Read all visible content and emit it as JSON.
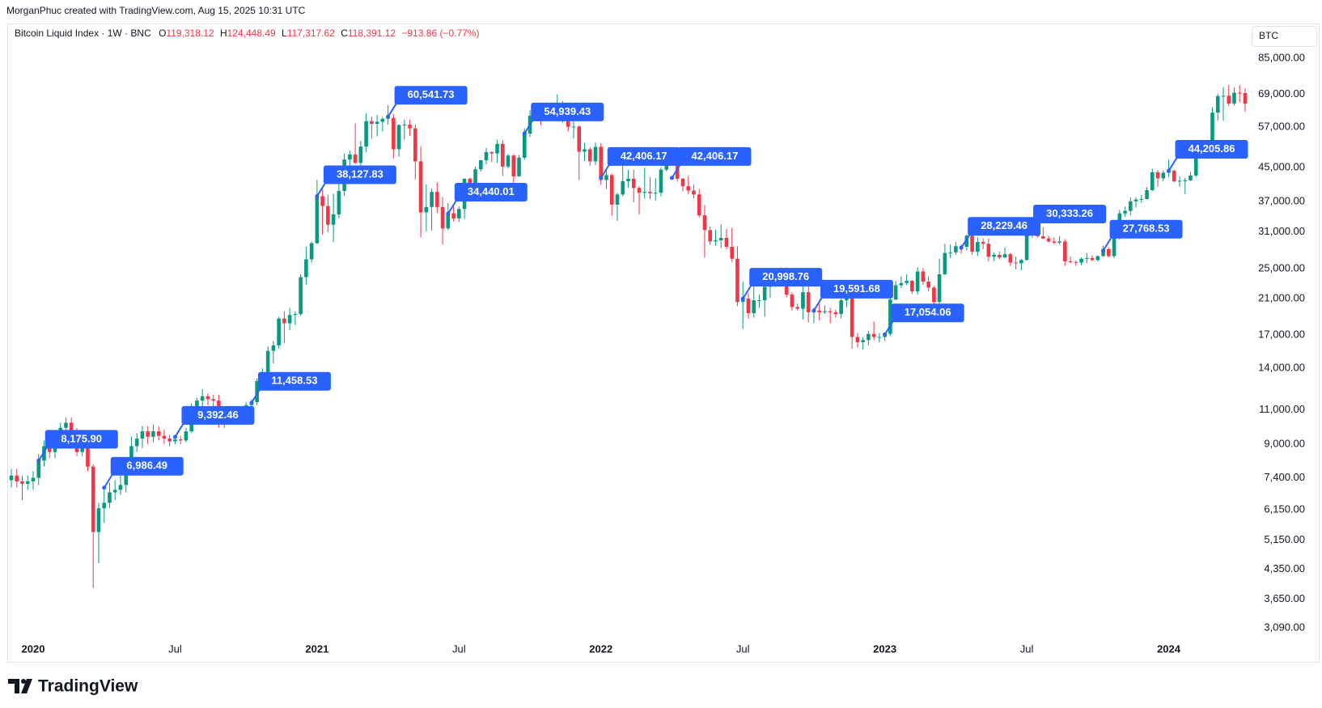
{
  "header": {
    "credit": "MorganPhuc created with TradingView.com, Aug 15, 2025 10:31 UTC",
    "title": "Bitcoin Liquid Index · 1W · BNC",
    "stats": [
      {
        "key": "O",
        "text": "119,318.12"
      },
      {
        "key": "H",
        "text": "124,448.49"
      },
      {
        "key": "L",
        "text": "117,317.62"
      },
      {
        "key": "C",
        "text": "118,391.12"
      }
    ],
    "change": "−913.86 (−0.77%)",
    "symbol_button": "BTC"
  },
  "chart_data": {
    "type": "candlestick",
    "log_scale": true,
    "grid": false,
    "up_color": "#089981",
    "down_color": "#f23645",
    "annotation_color": "#2962ff",
    "ylim": [
      2920,
      104200
    ],
    "yticks": [
      {
        "value": 3090,
        "label": "3,090.00"
      },
      {
        "value": 3650,
        "label": "3,650.00"
      },
      {
        "value": 4350,
        "label": "4,350.00"
      },
      {
        "value": 5150,
        "label": "5,150.00"
      },
      {
        "value": 6150,
        "label": "6,150.00"
      },
      {
        "value": 7400,
        "label": "7,400.00"
      },
      {
        "value": 9000,
        "label": "9,000.00"
      },
      {
        "value": 11000,
        "label": "11,000.00"
      },
      {
        "value": 14000,
        "label": "14,000.00"
      },
      {
        "value": 17000,
        "label": "17,000.00"
      },
      {
        "value": 21000,
        "label": "21,000.00"
      },
      {
        "value": 25000,
        "label": "25,000.00"
      },
      {
        "value": 31000,
        "label": "31,000.00"
      },
      {
        "value": 37000,
        "label": "37,000.00"
      },
      {
        "value": 45000,
        "label": "45,000.00"
      },
      {
        "value": 57000,
        "label": "57,000.00"
      },
      {
        "value": 69000,
        "label": "69,000.00"
      },
      {
        "value": 85000,
        "label": "85,000.00"
      }
    ],
    "categories": [
      null,
      null,
      null,
      null,
      "2020",
      null,
      null,
      null,
      null,
      null,
      null,
      null,
      null,
      null,
      null,
      null,
      null,
      null,
      null,
      null,
      null,
      null,
      null,
      null,
      null,
      null,
      null,
      null,
      null,
      null,
      "Jul",
      null,
      null,
      null,
      null,
      null,
      null,
      null,
      null,
      null,
      null,
      null,
      null,
      null,
      null,
      null,
      null,
      null,
      null,
      null,
      null,
      null,
      null,
      null,
      null,
      null,
      "2021",
      null,
      null,
      null,
      null,
      null,
      null,
      null,
      null,
      null,
      null,
      null,
      null,
      null,
      null,
      null,
      null,
      null,
      null,
      null,
      null,
      null,
      null,
      null,
      null,
      null,
      "Jul",
      null,
      null,
      null,
      null,
      null,
      null,
      null,
      null,
      null,
      null,
      null,
      null,
      null,
      null,
      null,
      null,
      null,
      null,
      null,
      null,
      null,
      null,
      null,
      null,
      null,
      "2022",
      null,
      null,
      null,
      null,
      null,
      null,
      null,
      null,
      null,
      null,
      null,
      null,
      null,
      null,
      null,
      null,
      null,
      null,
      null,
      null,
      null,
      null,
      null,
      null,
      null,
      "Jul",
      null,
      null,
      null,
      null,
      null,
      null,
      null,
      null,
      null,
      null,
      null,
      null,
      null,
      null,
      null,
      null,
      null,
      null,
      null,
      null,
      null,
      null,
      null,
      null,
      null,
      "2023",
      null,
      null,
      null,
      null,
      null,
      null,
      null,
      null,
      null,
      null,
      null,
      null,
      null,
      null,
      null,
      null,
      null,
      null,
      null,
      null,
      null,
      null,
      null,
      null,
      null,
      "Jul",
      null,
      null,
      null,
      null,
      null,
      null,
      null,
      null,
      null,
      null,
      null,
      null,
      null,
      null,
      null,
      null,
      null,
      null,
      null,
      null,
      null,
      null,
      null,
      null,
      null,
      "2024",
      null,
      null,
      null,
      null,
      null,
      null,
      null,
      null,
      null,
      null,
      null,
      null,
      null,
      null
    ],
    "open": [
      7300,
      7500,
      7250,
      7150,
      7250,
      7400,
      8180,
      8900,
      8600,
      9350,
      9900,
      10200,
      9700,
      8600,
      8900,
      7900,
      5400,
      6200,
      6400,
      6800,
      6900,
      7100,
      7700,
      8900,
      9300,
      9700,
      9400,
      9700,
      9450,
      9300,
      9150,
      9250,
      9200,
      9700,
      11000,
      11600,
      11900,
      11700,
      11600,
      10300,
      10400,
      10900,
      10700,
      10600,
      11300,
      11500,
      13000,
      13700,
      15500,
      16000,
      18700,
      18200,
      19100,
      19200,
      23800,
      26400,
      29000,
      38100,
      36000,
      32300,
      34300,
      39300,
      47200,
      48600,
      46300,
      50900,
      59000,
      58100,
      58800,
      59800,
      60100,
      50100,
      57700,
      57800,
      56600,
      46700,
      34700,
      35800,
      39100,
      35800,
      31600,
      34500,
      33500,
      35400,
      42200,
      39900,
      44600,
      47000,
      49300,
      48900,
      51700,
      45300,
      48300,
      42800,
      47700,
      54900,
      60900,
      61500,
      61300,
      63300,
      61400,
      64400,
      59600,
      57100,
      57200,
      49400,
      50100,
      46700,
      50800,
      41900,
      43100,
      36300,
      38500,
      41600,
      42200,
      40000,
      38900,
      39100,
      38800,
      38900,
      44500,
      46800,
      46400,
      42200,
      40400,
      39400,
      38500,
      34100,
      31300,
      29300,
      29500,
      29900,
      28400,
      26500,
      20600,
      21000,
      19300,
      20800,
      20800,
      22500,
      23600,
      23300,
      24400,
      21500,
      20000,
      19800,
      21800,
      19400,
      19600,
      19400,
      19500,
      19400,
      19200,
      20800,
      21300,
      16800,
      16300,
      16500,
      17100,
      16800,
      16800,
      17100,
      20900,
      22700,
      23000,
      23300,
      21900,
      24600,
      23200,
      22400,
      20600,
      24200,
      27400,
      27500,
      28500,
      28400,
      30300,
      27600,
      29200,
      28900,
      26800,
      27100,
      26700,
      27200,
      25900,
      25800,
      26300,
      30500,
      30600,
      30200,
      29800,
      29300,
      29100,
      29300,
      26100,
      26000,
      25900,
      26500,
      26600,
      26300,
      26900,
      28000,
      26900,
      29900,
      34500,
      35000,
      37000,
      37400,
      37500,
      39500,
      43800,
      42300,
      43700,
      44200,
      41600,
      41700,
      41800,
      43000,
      48300,
      52100,
      51700,
      62000,
      68300,
      68400,
      65400,
      69600,
      69500
    ],
    "high": [
      7800,
      7800,
      7500,
      7500,
      7700,
      8500,
      9200,
      9200,
      9700,
      10200,
      10500,
      10500,
      9900,
      9200,
      9200,
      8000,
      6400,
      6900,
      7200,
      7300,
      7500,
      7800,
      9400,
      9600,
      10000,
      10000,
      10100,
      10000,
      9800,
      9500,
      9450,
      9450,
      9900,
      11400,
      11800,
      12400,
      12100,
      12000,
      12000,
      10600,
      11200,
      11200,
      10900,
      11500,
      11700,
      13200,
      14000,
      15900,
      16400,
      18900,
      19500,
      19900,
      19500,
      24200,
      28400,
      29300,
      41900,
      40100,
      38500,
      38700,
      41000,
      48900,
      49700,
      58300,
      52600,
      61800,
      60600,
      61200,
      60500,
      64800,
      61500,
      57900,
      59500,
      59600,
      58000,
      51000,
      40900,
      39900,
      41300,
      38000,
      36600,
      36000,
      35900,
      42300,
      42500,
      45300,
      47100,
      50500,
      49500,
      52900,
      52900,
      48800,
      48700,
      48500,
      56600,
      62900,
      64900,
      63800,
      63600,
      64600,
      69000,
      66300,
      60000,
      59400,
      57600,
      51900,
      50800,
      52100,
      51900,
      44300,
      43500,
      38900,
      45500,
      44400,
      44500,
      40400,
      45000,
      42600,
      42300,
      45100,
      48200,
      47500,
      47300,
      42400,
      42900,
      40800,
      39800,
      36200,
      32000,
      31400,
      32400,
      31500,
      31700,
      28500,
      23200,
      21700,
      22500,
      21500,
      23000,
      24200,
      24600,
      25200,
      25200,
      21800,
      20400,
      22700,
      22700,
      19900,
      20400,
      20200,
      19900,
      19700,
      21000,
      21500,
      21400,
      17200,
      16800,
      17400,
      18400,
      17200,
      17200,
      21200,
      23300,
      23900,
      24200,
      23400,
      25200,
      25100,
      23900,
      22600,
      26500,
      28900,
      28800,
      29200,
      28800,
      30500,
      30900,
      30000,
      29800,
      29800,
      27500,
      27600,
      28300,
      27400,
      26800,
      26500,
      31300,
      31400,
      31500,
      31800,
      30300,
      30000,
      30200,
      29700,
      26800,
      26200,
      26700,
      27400,
      27000,
      27000,
      28600,
      28300,
      30100,
      35200,
      35900,
      37900,
      37900,
      38400,
      40200,
      44700,
      44400,
      44300,
      47200,
      44500,
      42800,
      42400,
      43900,
      48500,
      52800,
      52900,
      64000,
      69200,
      72000,
      72900,
      71800,
      72700,
      71500
    ],
    "low": [
      7000,
      7000,
      6500,
      6900,
      6900,
      7100,
      7900,
      8300,
      8300,
      9000,
      9500,
      9300,
      8400,
      8400,
      7700,
      3900,
      4500,
      5700,
      6200,
      6500,
      6700,
      6800,
      7500,
      8600,
      8800,
      9000,
      9100,
      9200,
      9000,
      8900,
      9000,
      9000,
      9100,
      9600,
      10600,
      11200,
      11300,
      11200,
      9900,
      9900,
      10200,
      10300,
      10100,
      10500,
      11200,
      11300,
      12800,
      13300,
      14400,
      15700,
      16200,
      17500,
      18000,
      19000,
      22800,
      25900,
      28900,
      30500,
      30900,
      29200,
      33500,
      38200,
      43700,
      46000,
      43100,
      49300,
      53300,
      54000,
      55600,
      57800,
      47500,
      48000,
      52900,
      54100,
      42000,
      30000,
      31100,
      31200,
      34600,
      28800,
      31300,
      32900,
      32800,
      33400,
      37400,
      37400,
      44000,
      45900,
      46500,
      46300,
      42900,
      44800,
      39600,
      42700,
      47100,
      53800,
      59900,
      57600,
      59700,
      60100,
      60700,
      58500,
      55600,
      53300,
      42000,
      46800,
      45500,
      45700,
      40700,
      39800,
      34000,
      33000,
      38100,
      40100,
      36800,
      34300,
      37600,
      37500,
      37200,
      38100,
      44000,
      45600,
      41500,
      39200,
      38600,
      37700,
      33700,
      26700,
      28700,
      28600,
      28200,
      28000,
      26000,
      20100,
      17600,
      18700,
      18800,
      19900,
      18900,
      21100,
      22500,
      22700,
      21200,
      19600,
      19600,
      18600,
      18300,
      18200,
      18500,
      19200,
      18200,
      18800,
      18700,
      20000,
      15700,
      15800,
      15600,
      16000,
      16500,
      16300,
      16400,
      16900,
      20800,
      22300,
      22700,
      21600,
      21500,
      22800,
      21900,
      19600,
      19600,
      24100,
      26600,
      27100,
      27300,
      27800,
      27100,
      26900,
      28000,
      26100,
      26100,
      26400,
      26600,
      25400,
      24900,
      24800,
      26200,
      29900,
      30000,
      29700,
      29100,
      28800,
      28800,
      25400,
      25800,
      25400,
      25500,
      25800,
      26100,
      26100,
      26800,
      26700,
      26600,
      29600,
      33800,
      34100,
      35700,
      36700,
      37400,
      39300,
      40300,
      41600,
      42600,
      41300,
      40300,
      38600,
      41700,
      42600,
      47800,
      50700,
      50700,
      59200,
      59100,
      64500,
      64700,
      66000,
      62300
    ],
    "close": [
      7500,
      7250,
      7150,
      7250,
      7400,
      8180,
      8900,
      8600,
      9350,
      9900,
      10200,
      9700,
      8600,
      8900,
      7900,
      5400,
      6200,
      6400,
      6800,
      6900,
      7100,
      7700,
      8900,
      9300,
      9700,
      9400,
      9700,
      9450,
      9300,
      9150,
      9250,
      9200,
      9700,
      11000,
      11600,
      11900,
      11700,
      11600,
      10300,
      10400,
      10900,
      10700,
      10600,
      11300,
      11500,
      13000,
      13700,
      15500,
      16000,
      18700,
      18200,
      19100,
      19200,
      23800,
      26400,
      29000,
      38100,
      36000,
      32300,
      34300,
      39300,
      47200,
      48600,
      46300,
      50900,
      59000,
      58100,
      58800,
      59800,
      60100,
      50100,
      57700,
      57800,
      56600,
      46700,
      34700,
      35800,
      39100,
      35800,
      31600,
      34500,
      33500,
      35400,
      42200,
      39900,
      44600,
      47000,
      49300,
      48900,
      51700,
      45300,
      48300,
      42800,
      47700,
      54900,
      60900,
      61500,
      61300,
      63300,
      61400,
      64400,
      59600,
      57100,
      57200,
      49400,
      50100,
      46700,
      50800,
      41900,
      43100,
      36300,
      38500,
      41600,
      42200,
      40000,
      38900,
      39100,
      38800,
      38900,
      44500,
      46800,
      46400,
      42200,
      40400,
      39400,
      38500,
      34100,
      31300,
      29300,
      29500,
      29900,
      28400,
      26500,
      20600,
      21000,
      19300,
      20800,
      20800,
      22500,
      23600,
      23300,
      24400,
      21500,
      20000,
      19800,
      21800,
      19400,
      19600,
      19400,
      19500,
      19400,
      19200,
      20800,
      21300,
      16800,
      16300,
      16500,
      17100,
      16800,
      16800,
      17100,
      20900,
      22700,
      23000,
      23300,
      21900,
      24600,
      23200,
      22400,
      20600,
      24200,
      27400,
      27500,
      28500,
      28400,
      30300,
      27600,
      29200,
      28900,
      26800,
      27100,
      26700,
      27200,
      25900,
      25800,
      26300,
      30500,
      30600,
      30200,
      29800,
      29300,
      29100,
      29300,
      26100,
      26000,
      25900,
      26500,
      26600,
      26300,
      26900,
      28000,
      26900,
      29900,
      34500,
      35000,
      37000,
      37400,
      37500,
      39500,
      43800,
      42300,
      43700,
      44200,
      41600,
      41700,
      41800,
      43000,
      48300,
      52100,
      51700,
      62000,
      68300,
      68400,
      65400,
      69600,
      69500,
      65300
    ],
    "annotations": [
      {
        "index": 5,
        "value": 8175.9,
        "label": "8,175.90"
      },
      {
        "index": 17,
        "value": 6986.49,
        "label": "6,986.49"
      },
      {
        "index": 30,
        "value": 9392.46,
        "label": "9,392.46"
      },
      {
        "index": 44,
        "value": 11458.53,
        "label": "11,458.53"
      },
      {
        "index": 56,
        "value": 38127.83,
        "label": "38,127.83"
      },
      {
        "index": 69,
        "value": 60541.73,
        "label": "60,541.73"
      },
      {
        "index": 80,
        "value": 34440.01,
        "label": "34,440.01"
      },
      {
        "index": 94,
        "value": 54939.43,
        "label": "54,939.43"
      },
      {
        "index": 108,
        "value": 42406.17,
        "label": "42,406.17"
      },
      {
        "index": 121,
        "value": 42406.17,
        "label": "42,406.17"
      },
      {
        "index": 134,
        "value": 20998.76,
        "label": "20,998.76"
      },
      {
        "index": 147,
        "value": 19591.68,
        "label": "19,591.68"
      },
      {
        "index": 160,
        "value": 17054.06,
        "label": "17,054.06"
      },
      {
        "index": 174,
        "value": 28229.46,
        "label": "28,229.46"
      },
      {
        "index": 186,
        "value": 30333.26,
        "label": "30,333.26"
      },
      {
        "index": 200,
        "value": 27768.53,
        "label": "27,768.53"
      },
      {
        "index": 212,
        "value": 44205.86,
        "label": "44,205.86"
      }
    ]
  },
  "footer": {
    "brand": "TradingView"
  }
}
